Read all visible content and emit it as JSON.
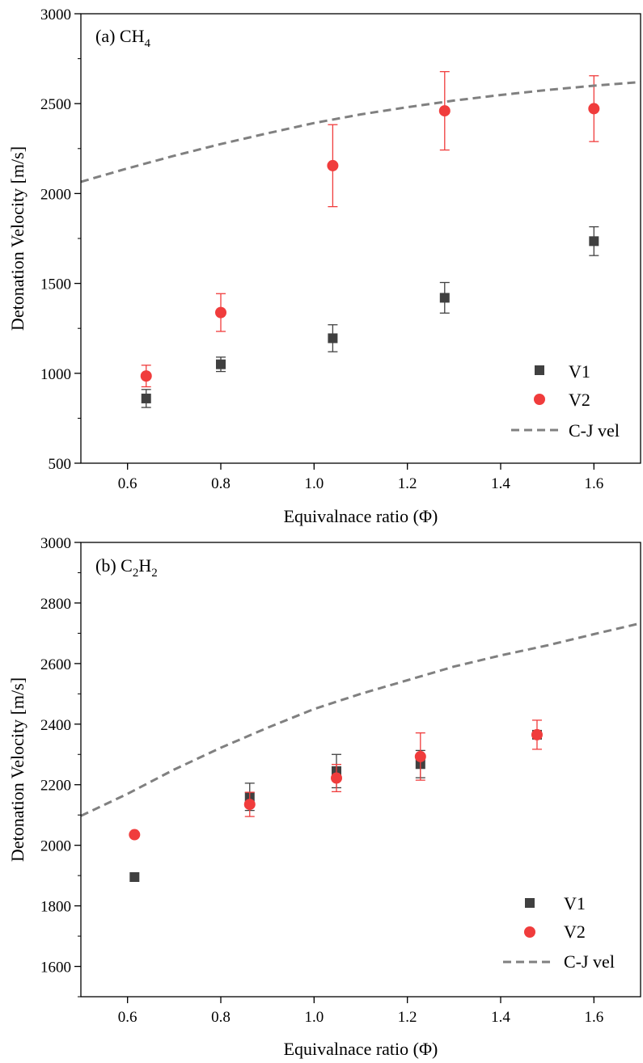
{
  "chart_data": [
    {
      "type": "scatter",
      "panel_label": "(a) CH",
      "panel_label_sub": "4",
      "xlabel": "Equivalnace ratio (Φ)",
      "ylabel": "Detonation Velocity [m/s]",
      "xlim": [
        0.5,
        1.7
      ],
      "ylim": [
        500,
        3000
      ],
      "xticks": [
        0.6,
        0.8,
        1.0,
        1.2,
        1.4,
        1.6
      ],
      "yticks": [
        500,
        1000,
        1500,
        2000,
        2500,
        3000
      ],
      "xtick_labels": [
        "0.6",
        "0.8",
        "1.0",
        "1.2",
        "1.4",
        "1.6"
      ],
      "ytick_labels": [
        "500",
        "1000",
        "1500",
        "2000",
        "2500",
        "3000"
      ],
      "legend": [
        "V1",
        "V2",
        "C-J vel"
      ],
      "legend_position": "bottom-right",
      "series": [
        {
          "name": "V1",
          "marker": "square",
          "color": "#404040",
          "x": [
            0.64,
            0.8,
            1.04,
            1.28,
            1.6
          ],
          "y": [
            860,
            1050,
            1195,
            1420,
            1735
          ],
          "err": [
            50,
            40,
            75,
            85,
            80
          ]
        },
        {
          "name": "V2",
          "marker": "circle",
          "color": "#f03c3c",
          "x": [
            0.64,
            0.8,
            1.04,
            1.28,
            1.6
          ],
          "y": [
            985,
            1338,
            2155,
            2460,
            2472
          ],
          "err": [
            60,
            105,
            228,
            218,
            183
          ]
        },
        {
          "name": "C-J vel",
          "style": "dashed-line",
          "color": "#808080",
          "x": [
            0.5,
            0.6,
            0.7,
            0.8,
            0.9,
            1.0,
            1.1,
            1.2,
            1.3,
            1.4,
            1.5,
            1.6,
            1.7
          ],
          "y": [
            2065,
            2140,
            2210,
            2275,
            2335,
            2392,
            2440,
            2480,
            2517,
            2548,
            2576,
            2600,
            2620
          ]
        }
      ]
    },
    {
      "type": "scatter",
      "panel_label": "(b) C",
      "panel_label_mid": "H",
      "panel_label_sub": "2",
      "xlabel": "Equivalnace ratio (Φ)",
      "ylabel": "Detonation Velocity [m/s]",
      "xlim": [
        0.5,
        1.7
      ],
      "ylim": [
        1500,
        3000
      ],
      "xticks": [
        0.6,
        0.8,
        1.0,
        1.2,
        1.4,
        1.6
      ],
      "yticks": [
        1600,
        1800,
        2000,
        2200,
        2400,
        2600,
        2800,
        3000
      ],
      "xtick_labels": [
        "0.6",
        "0.8",
        "1.0",
        "1.2",
        "1.4",
        "1.6"
      ],
      "ytick_labels": [
        "1600",
        "1800",
        "2000",
        "2200",
        "2400",
        "2600",
        "2800",
        "3000"
      ],
      "legend": [
        "V1",
        "V2",
        "C-J vel"
      ],
      "legend_position": "bottom-right",
      "series": [
        {
          "name": "V1",
          "marker": "square",
          "color": "#404040",
          "x": [
            0.615,
            0.862,
            1.048,
            1.228,
            1.478
          ],
          "y": [
            1895,
            2160,
            2245,
            2268,
            2365
          ],
          "err": [
            0,
            45,
            55,
            45,
            0
          ]
        },
        {
          "name": "V2",
          "marker": "circle",
          "color": "#f03c3c",
          "x": [
            0.615,
            0.862,
            1.048,
            1.228,
            1.478
          ],
          "y": [
            2035,
            2135,
            2222,
            2293,
            2365
          ],
          "err": [
            0,
            40,
            45,
            78,
            48
          ]
        },
        {
          "name": "C-J vel",
          "style": "dashed-line",
          "color": "#808080",
          "x": [
            0.5,
            0.6,
            0.7,
            0.8,
            0.9,
            1.0,
            1.1,
            1.2,
            1.3,
            1.4,
            1.5,
            1.6,
            1.7
          ],
          "y": [
            2097,
            2170,
            2250,
            2322,
            2388,
            2450,
            2500,
            2545,
            2590,
            2627,
            2660,
            2697,
            2733
          ]
        }
      ]
    }
  ]
}
